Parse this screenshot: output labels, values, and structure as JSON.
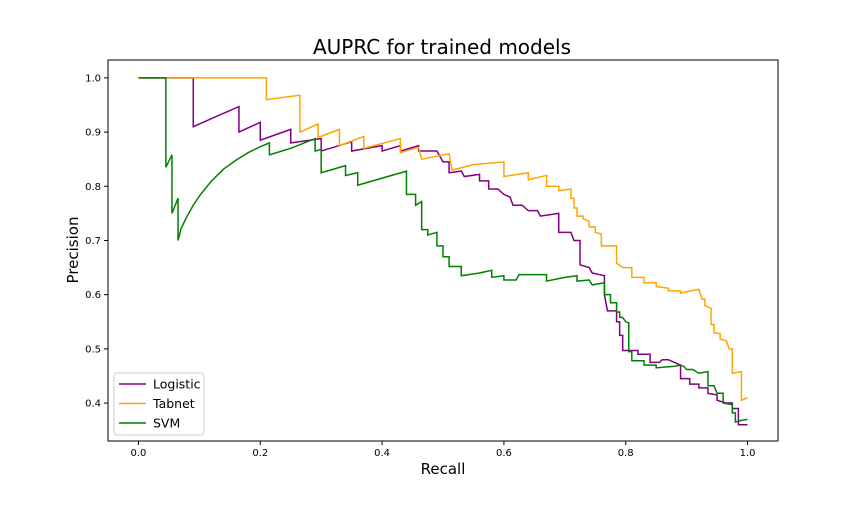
{
  "chart_data": {
    "type": "line",
    "title": "AUPRC for trained models",
    "xlabel": "Recall",
    "ylabel": "Precision",
    "xlim": [
      -0.05,
      1.05
    ],
    "ylim": [
      0.33,
      1.033
    ],
    "xticks": [
      0.0,
      0.2,
      0.4,
      0.6,
      0.8,
      1.0
    ],
    "xtick_labels": [
      "0.0",
      "0.2",
      "0.4",
      "0.6",
      "0.8",
      "1.0"
    ],
    "yticks": [
      0.4,
      0.5,
      0.6,
      0.7,
      0.8,
      0.9,
      1.0
    ],
    "ytick_labels": [
      "0.4",
      "0.5",
      "0.6",
      "0.7",
      "0.8",
      "0.9",
      "1.0"
    ],
    "grid": false,
    "legend_position": "lower-left",
    "series": [
      {
        "name": "Logistic",
        "color": "#800080",
        "points": [
          [
            0.0,
            1.0
          ],
          [
            0.09,
            1.0
          ],
          [
            0.09,
            0.91
          ],
          [
            0.12,
            0.925
          ],
          [
            0.165,
            0.947
          ],
          [
            0.165,
            0.9
          ],
          [
            0.2,
            0.918
          ],
          [
            0.2,
            0.885
          ],
          [
            0.25,
            0.905
          ],
          [
            0.25,
            0.88
          ],
          [
            0.3,
            0.888
          ],
          [
            0.3,
            0.865
          ],
          [
            0.35,
            0.882
          ],
          [
            0.35,
            0.865
          ],
          [
            0.4,
            0.875
          ],
          [
            0.4,
            0.865
          ],
          [
            0.43,
            0.875
          ],
          [
            0.43,
            0.865
          ],
          [
            0.46,
            0.875
          ],
          [
            0.46,
            0.865
          ],
          [
            0.49,
            0.865
          ],
          [
            0.5,
            0.845
          ],
          [
            0.51,
            0.845
          ],
          [
            0.51,
            0.825
          ],
          [
            0.53,
            0.828
          ],
          [
            0.535,
            0.818
          ],
          [
            0.56,
            0.822
          ],
          [
            0.56,
            0.81
          ],
          [
            0.575,
            0.81
          ],
          [
            0.575,
            0.795
          ],
          [
            0.59,
            0.795
          ],
          [
            0.6,
            0.785
          ],
          [
            0.61,
            0.78
          ],
          [
            0.615,
            0.765
          ],
          [
            0.63,
            0.765
          ],
          [
            0.64,
            0.755
          ],
          [
            0.655,
            0.755
          ],
          [
            0.66,
            0.745
          ],
          [
            0.69,
            0.75
          ],
          [
            0.69,
            0.715
          ],
          [
            0.71,
            0.715
          ],
          [
            0.715,
            0.7
          ],
          [
            0.725,
            0.7
          ],
          [
            0.725,
            0.655
          ],
          [
            0.74,
            0.65
          ],
          [
            0.745,
            0.64
          ],
          [
            0.765,
            0.635
          ],
          [
            0.765,
            0.6
          ],
          [
            0.77,
            0.57
          ],
          [
            0.785,
            0.57
          ],
          [
            0.785,
            0.55
          ],
          [
            0.79,
            0.55
          ],
          [
            0.79,
            0.525
          ],
          [
            0.795,
            0.525
          ],
          [
            0.795,
            0.497
          ],
          [
            0.82,
            0.497
          ],
          [
            0.82,
            0.49
          ],
          [
            0.84,
            0.49
          ],
          [
            0.84,
            0.475
          ],
          [
            0.855,
            0.475
          ],
          [
            0.86,
            0.48
          ],
          [
            0.87,
            0.48
          ],
          [
            0.89,
            0.47
          ],
          [
            0.89,
            0.445
          ],
          [
            0.905,
            0.445
          ],
          [
            0.905,
            0.435
          ],
          [
            0.92,
            0.435
          ],
          [
            0.92,
            0.428
          ],
          [
            0.935,
            0.428
          ],
          [
            0.935,
            0.418
          ],
          [
            0.95,
            0.415
          ],
          [
            0.95,
            0.405
          ],
          [
            0.965,
            0.4
          ],
          [
            0.975,
            0.4
          ],
          [
            0.975,
            0.39
          ],
          [
            0.985,
            0.39
          ],
          [
            0.985,
            0.36
          ],
          [
            1.0,
            0.36
          ]
        ]
      },
      {
        "name": "Tabnet",
        "color": "#ffa500",
        "points": [
          [
            0.0,
            1.0
          ],
          [
            0.21,
            1.0
          ],
          [
            0.21,
            0.96
          ],
          [
            0.265,
            0.968
          ],
          [
            0.265,
            0.9
          ],
          [
            0.295,
            0.915
          ],
          [
            0.295,
            0.89
          ],
          [
            0.33,
            0.905
          ],
          [
            0.33,
            0.875
          ],
          [
            0.37,
            0.892
          ],
          [
            0.37,
            0.87
          ],
          [
            0.43,
            0.888
          ],
          [
            0.43,
            0.862
          ],
          [
            0.46,
            0.872
          ],
          [
            0.465,
            0.85
          ],
          [
            0.51,
            0.86
          ],
          [
            0.515,
            0.83
          ],
          [
            0.55,
            0.84
          ],
          [
            0.6,
            0.845
          ],
          [
            0.6,
            0.818
          ],
          [
            0.64,
            0.825
          ],
          [
            0.64,
            0.812
          ],
          [
            0.67,
            0.82
          ],
          [
            0.67,
            0.8
          ],
          [
            0.69,
            0.8
          ],
          [
            0.69,
            0.792
          ],
          [
            0.71,
            0.795
          ],
          [
            0.71,
            0.778
          ],
          [
            0.715,
            0.778
          ],
          [
            0.715,
            0.76
          ],
          [
            0.72,
            0.76
          ],
          [
            0.72,
            0.745
          ],
          [
            0.73,
            0.745
          ],
          [
            0.73,
            0.74
          ],
          [
            0.74,
            0.735
          ],
          [
            0.74,
            0.725
          ],
          [
            0.75,
            0.725
          ],
          [
            0.75,
            0.715
          ],
          [
            0.76,
            0.712
          ],
          [
            0.76,
            0.69
          ],
          [
            0.785,
            0.69
          ],
          [
            0.785,
            0.658
          ],
          [
            0.795,
            0.65
          ],
          [
            0.81,
            0.65
          ],
          [
            0.81,
            0.632
          ],
          [
            0.83,
            0.632
          ],
          [
            0.83,
            0.622
          ],
          [
            0.85,
            0.622
          ],
          [
            0.85,
            0.615
          ],
          [
            0.87,
            0.612
          ],
          [
            0.87,
            0.607
          ],
          [
            0.89,
            0.607
          ],
          [
            0.89,
            0.603
          ],
          [
            0.92,
            0.61
          ],
          [
            0.925,
            0.592
          ],
          [
            0.93,
            0.592
          ],
          [
            0.93,
            0.58
          ],
          [
            0.94,
            0.575
          ],
          [
            0.94,
            0.545
          ],
          [
            0.945,
            0.545
          ],
          [
            0.945,
            0.53
          ],
          [
            0.955,
            0.528
          ],
          [
            0.955,
            0.518
          ],
          [
            0.965,
            0.515
          ],
          [
            0.97,
            0.5
          ],
          [
            0.975,
            0.5
          ],
          [
            0.975,
            0.455
          ],
          [
            0.99,
            0.458
          ],
          [
            0.99,
            0.405
          ],
          [
            1.0,
            0.41
          ]
        ]
      },
      {
        "name": "SVM",
        "color": "#008000",
        "points": [
          [
            0.0,
            1.0
          ],
          [
            0.045,
            1.0
          ],
          [
            0.045,
            0.835
          ],
          [
            0.055,
            0.858
          ],
          [
            0.055,
            0.75
          ],
          [
            0.065,
            0.778
          ],
          [
            0.065,
            0.7
          ],
          [
            0.07,
            0.722
          ],
          [
            0.08,
            0.745
          ],
          [
            0.09,
            0.765
          ],
          [
            0.1,
            0.782
          ],
          [
            0.12,
            0.81
          ],
          [
            0.14,
            0.832
          ],
          [
            0.16,
            0.848
          ],
          [
            0.18,
            0.862
          ],
          [
            0.2,
            0.873
          ],
          [
            0.215,
            0.88
          ],
          [
            0.215,
            0.858
          ],
          [
            0.25,
            0.87
          ],
          [
            0.29,
            0.888
          ],
          [
            0.29,
            0.865
          ],
          [
            0.3,
            0.868
          ],
          [
            0.3,
            0.825
          ],
          [
            0.34,
            0.838
          ],
          [
            0.34,
            0.82
          ],
          [
            0.36,
            0.825
          ],
          [
            0.36,
            0.802
          ],
          [
            0.44,
            0.828
          ],
          [
            0.44,
            0.785
          ],
          [
            0.455,
            0.785
          ],
          [
            0.455,
            0.765
          ],
          [
            0.465,
            0.772
          ],
          [
            0.465,
            0.72
          ],
          [
            0.475,
            0.72
          ],
          [
            0.475,
            0.71
          ],
          [
            0.49,
            0.715
          ],
          [
            0.49,
            0.69
          ],
          [
            0.5,
            0.69
          ],
          [
            0.5,
            0.67
          ],
          [
            0.51,
            0.67
          ],
          [
            0.51,
            0.652
          ],
          [
            0.53,
            0.652
          ],
          [
            0.53,
            0.635
          ],
          [
            0.56,
            0.64
          ],
          [
            0.58,
            0.645
          ],
          [
            0.58,
            0.632
          ],
          [
            0.6,
            0.635
          ],
          [
            0.6,
            0.627
          ],
          [
            0.62,
            0.627
          ],
          [
            0.625,
            0.637
          ],
          [
            0.67,
            0.637
          ],
          [
            0.67,
            0.625
          ],
          [
            0.7,
            0.632
          ],
          [
            0.72,
            0.635
          ],
          [
            0.72,
            0.625
          ],
          [
            0.74,
            0.627
          ],
          [
            0.745,
            0.618
          ],
          [
            0.765,
            0.622
          ],
          [
            0.765,
            0.6
          ],
          [
            0.775,
            0.6
          ],
          [
            0.775,
            0.585
          ],
          [
            0.785,
            0.585
          ],
          [
            0.785,
            0.568
          ],
          [
            0.79,
            0.568
          ],
          [
            0.79,
            0.558
          ],
          [
            0.795,
            0.558
          ],
          [
            0.8,
            0.55
          ],
          [
            0.805,
            0.548
          ],
          [
            0.805,
            0.495
          ],
          [
            0.81,
            0.495
          ],
          [
            0.81,
            0.478
          ],
          [
            0.83,
            0.478
          ],
          [
            0.83,
            0.47
          ],
          [
            0.85,
            0.47
          ],
          [
            0.85,
            0.465
          ],
          [
            0.88,
            0.468
          ],
          [
            0.89,
            0.47
          ],
          [
            0.895,
            0.468
          ],
          [
            0.9,
            0.462
          ],
          [
            0.91,
            0.462
          ],
          [
            0.92,
            0.455
          ],
          [
            0.935,
            0.458
          ],
          [
            0.935,
            0.432
          ],
          [
            0.945,
            0.432
          ],
          [
            0.95,
            0.418
          ],
          [
            0.96,
            0.418
          ],
          [
            0.96,
            0.4
          ],
          [
            0.975,
            0.397
          ],
          [
            0.975,
            0.382
          ],
          [
            0.98,
            0.382
          ],
          [
            0.98,
            0.365
          ],
          [
            0.99,
            0.368
          ],
          [
            1.0,
            0.37
          ]
        ]
      }
    ]
  }
}
